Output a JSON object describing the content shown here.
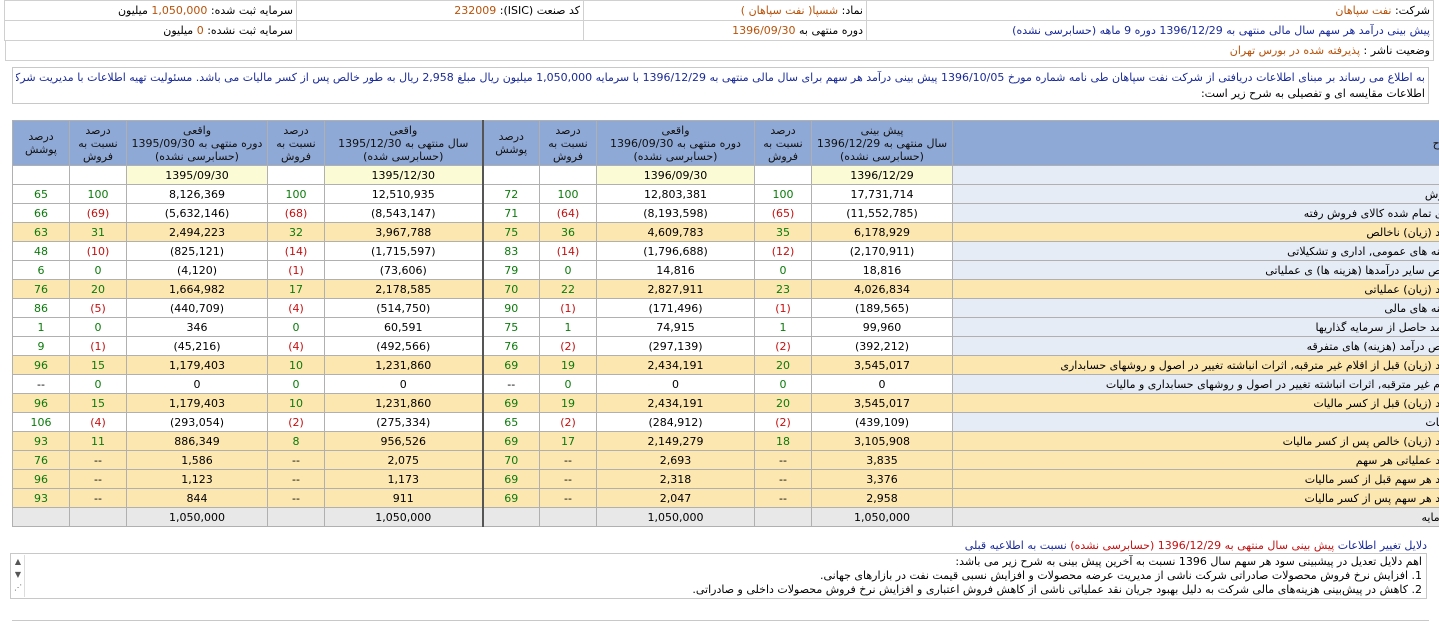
{
  "header": {
    "company_label": "شرکت:",
    "company_value": "نفت سپاهان",
    "symbol_label": "نماد:",
    "symbol_value": "شسپا( نفت سپاهان )",
    "isic_label": "کد صنعت (ISIC):",
    "isic_value": "232009",
    "capital_reg_label": "سرمایه ثبت شده:",
    "capital_reg_value": "1,050,000",
    "capital_reg_unit": "میلیون",
    "forecast_title": "پیش بینی درآمد هر سهم سال مالی منتهی به 1396/12/29 دوره 9 ماهه (حسابرسی نشده)",
    "period_label": "دوره منتهی به",
    "period_value": "1396/09/30",
    "capital_unreg_label": "سرمایه ثبت نشده:",
    "capital_unreg_value": "0",
    "capital_unreg_unit": "میلیون",
    "status_label": "وضعیت ناشر :",
    "status_value": "پذیرفته شده در بورس تهران"
  },
  "notice": {
    "line1": "به اطلاع می رساند بر مبنای اطلاعات دریافتی از شرکت نفت سپاهان طی نامه شماره مورخ 1396/10/05 پیش بینی درآمد هر سهم برای سال مالی منتهی به 1396/12/29 با سرمایه 1,050,000 میلیون ریال مبلغ 2,958 ریال به طور خالص پس از کسر مالیات می باشد. مسئولیت تهیه اطلاعات با مدیریت شرکت است.",
    "line2": "اطلاعات مقایسه ای و تفصیلی به شرح زیر است:"
  },
  "table": {
    "headers": {
      "sharh": "شرح",
      "forecast": "پیش بینی\nسال منتهی به 1396/12/29\n(حسابرسی نشده)",
      "pct_sales": "درصد\nنسبت به\nفروش",
      "actual_9m_96": "واقعی\nدوره منتهی به 1396/09/30\n(حسابرسی نشده)",
      "coverage": "درصد\nپوشش",
      "actual_year_95": "واقعی\nسال منتهی به 1395/12/30\n(حسابرسی شده)",
      "actual_9m_95": "واقعی\nدوره منتهی به 1395/09/30\n(حسابرسی نشده)"
    },
    "dates": [
      "1396/12/29",
      "1396/09/30",
      "1395/12/30",
      "1395/09/30"
    ],
    "rows": [
      {
        "desc": "فروش",
        "s": "w",
        "f": "17,731,714",
        "fp": "100",
        "a9": "12,803,381",
        "a9p": "100",
        "c1": "72",
        "ay": "12,510,935",
        "ayp": "100",
        "a95": "8,126,369",
        "a95p": "100",
        "c2": "65"
      },
      {
        "desc": "بهای تمام شده کالای فروش رفته",
        "s": "w",
        "f": "(11,552,785)",
        "fp": "(65)",
        "a9": "(8,193,598)",
        "a9p": "(64)",
        "c1": "71",
        "ay": "(8,543,147)",
        "ayp": "(68)",
        "a95": "(5,632,146)",
        "a95p": "(69)",
        "c2": "66"
      },
      {
        "desc": "سود (زیان) ناخالص",
        "s": "y",
        "f": "6,178,929",
        "fp": "35",
        "a9": "4,609,783",
        "a9p": "36",
        "c1": "75",
        "ay": "3,967,788",
        "ayp": "32",
        "a95": "2,494,223",
        "a95p": "31",
        "c2": "63"
      },
      {
        "desc": "هزینه های عمومی, اداری و تشکیلاتی",
        "s": "w",
        "f": "(2,170,911)",
        "fp": "(12)",
        "a9": "(1,796,688)",
        "a9p": "(14)",
        "c1": "83",
        "ay": "(1,715,597)",
        "ayp": "(14)",
        "a95": "(825,121)",
        "a95p": "(10)",
        "c2": "48"
      },
      {
        "desc": "خالص سایر درآمدها (هزینه ها) ی عملیاتی",
        "s": "w",
        "f": "18,816",
        "fp": "0",
        "a9": "14,816",
        "a9p": "0",
        "c1": "79",
        "ay": "(73,606)",
        "ayp": "(1)",
        "a95": "(4,120)",
        "a95p": "0",
        "c2": "6"
      },
      {
        "desc": "سود (زیان) عملیاتی",
        "s": "y",
        "f": "4,026,834",
        "fp": "23",
        "a9": "2,827,911",
        "a9p": "22",
        "c1": "70",
        "ay": "2,178,585",
        "ayp": "17",
        "a95": "1,664,982",
        "a95p": "20",
        "c2": "76"
      },
      {
        "desc": "هزینه های مالی",
        "s": "w",
        "f": "(189,565)",
        "fp": "(1)",
        "a9": "(171,496)",
        "a9p": "(1)",
        "c1": "90",
        "ay": "(514,750)",
        "ayp": "(4)",
        "a95": "(440,709)",
        "a95p": "(5)",
        "c2": "86"
      },
      {
        "desc": "درآمد حاصل از سرمایه گذاریها",
        "s": "w",
        "f": "99,960",
        "fp": "1",
        "a9": "74,915",
        "a9p": "1",
        "c1": "75",
        "ay": "60,591",
        "ayp": "0",
        "a95": "346",
        "a95p": "0",
        "c2": "1"
      },
      {
        "desc": "خالص درآمد (هزینه) های متفرقه",
        "s": "w",
        "f": "(392,212)",
        "fp": "(2)",
        "a9": "(297,139)",
        "a9p": "(2)",
        "c1": "76",
        "ay": "(492,566)",
        "ayp": "(4)",
        "a95": "(45,216)",
        "a95p": "(1)",
        "c2": "9"
      },
      {
        "desc": "سود (زیان) قبل از اقلام غیر مترقبه, اثرات انباشته تغییر در اصول و روشهای حسابداری",
        "s": "y",
        "f": "3,545,017",
        "fp": "20",
        "a9": "2,434,191",
        "a9p": "19",
        "c1": "69",
        "ay": "1,231,860",
        "ayp": "10",
        "a95": "1,179,403",
        "a95p": "15",
        "c2": "96"
      },
      {
        "desc": "اقلام غیر مترقبه, اثرات انباشته تغییر در اصول و روشهای حسابداری و مالیات",
        "s": "w",
        "f": "0",
        "fp": "0",
        "a9": "0",
        "a9p": "0",
        "c1": "--",
        "ay": "0",
        "ayp": "0",
        "a95": "0",
        "a95p": "0",
        "c2": "--"
      },
      {
        "desc": "سود (زیان) قبل از کسر مالیات",
        "s": "y",
        "f": "3,545,017",
        "fp": "20",
        "a9": "2,434,191",
        "a9p": "19",
        "c1": "69",
        "ay": "1,231,860",
        "ayp": "10",
        "a95": "1,179,403",
        "a95p": "15",
        "c2": "96"
      },
      {
        "desc": "مالیات",
        "s": "w",
        "f": "(439,109)",
        "fp": "(2)",
        "a9": "(284,912)",
        "a9p": "(2)",
        "c1": "65",
        "ay": "(275,334)",
        "ayp": "(2)",
        "a95": "(293,054)",
        "a95p": "(4)",
        "c2": "106"
      },
      {
        "desc": "سود (زیان) خالص پس از کسر مالیات",
        "s": "y",
        "f": "3,105,908",
        "fp": "18",
        "a9": "2,149,279",
        "a9p": "17",
        "c1": "69",
        "ay": "956,526",
        "ayp": "8",
        "a95": "886,349",
        "a95p": "11",
        "c2": "93"
      },
      {
        "desc": "سود عملیاتی هر سهم",
        "s": "y",
        "f": "3,835",
        "fp": "--",
        "a9": "2,693",
        "a9p": "--",
        "c1": "70",
        "ay": "2,075",
        "ayp": "--",
        "a95": "1,586",
        "a95p": "--",
        "c2": "76"
      },
      {
        "desc": "سود هر سهم قبل از کسر مالیات",
        "s": "y",
        "f": "3,376",
        "fp": "--",
        "a9": "2,318",
        "a9p": "--",
        "c1": "69",
        "ay": "1,173",
        "ayp": "--",
        "a95": "1,123",
        "a95p": "--",
        "c2": "96"
      },
      {
        "desc": "سود هر سهم پس از کسر مالیات",
        "s": "y",
        "f": "2,958",
        "fp": "--",
        "a9": "2,047",
        "a9p": "--",
        "c1": "69",
        "ay": "911",
        "ayp": "--",
        "a95": "844",
        "a95p": "--",
        "c2": "93"
      },
      {
        "desc": "سرمایه",
        "s": "g",
        "f": "1,050,000",
        "fp": "",
        "a9": "1,050,000",
        "a9p": "",
        "c1": "",
        "ay": "1,050,000",
        "ayp": "",
        "a95": "1,050,000",
        "a95p": "",
        "c2": ""
      }
    ]
  },
  "reasons": {
    "title_prefix": "دلایل تغییر اطلاعات",
    "title_mid": "پیش بینی سال منتهی به 1396/12/29 (حسابرسی نشده)",
    "title_suffix": "نسبت به اطلاعیه قبلی",
    "line1": "اهم دلایل تعدیل در پیشبینی سود هر سهم سال 1396 نسبت به آخرین پیش بینی به شرح زیر می باشد:",
    "line2": "1.    افزایش نرخ فروش محصولات صادراتی شرکت ناشی از مدیریت عرضه محصولات و افزایش نسبی قیمت نفت در بازارهای جهانی.",
    "line3": "2.    کاهش در پیش‌بینی هزینه‌های مالی شرکت به دلیل بهبود جریان نقد عملیاتی ناشی از کاهش فروش اعتباری و افزایش نرخ فروش محصولات داخلی و صادراتی."
  }
}
